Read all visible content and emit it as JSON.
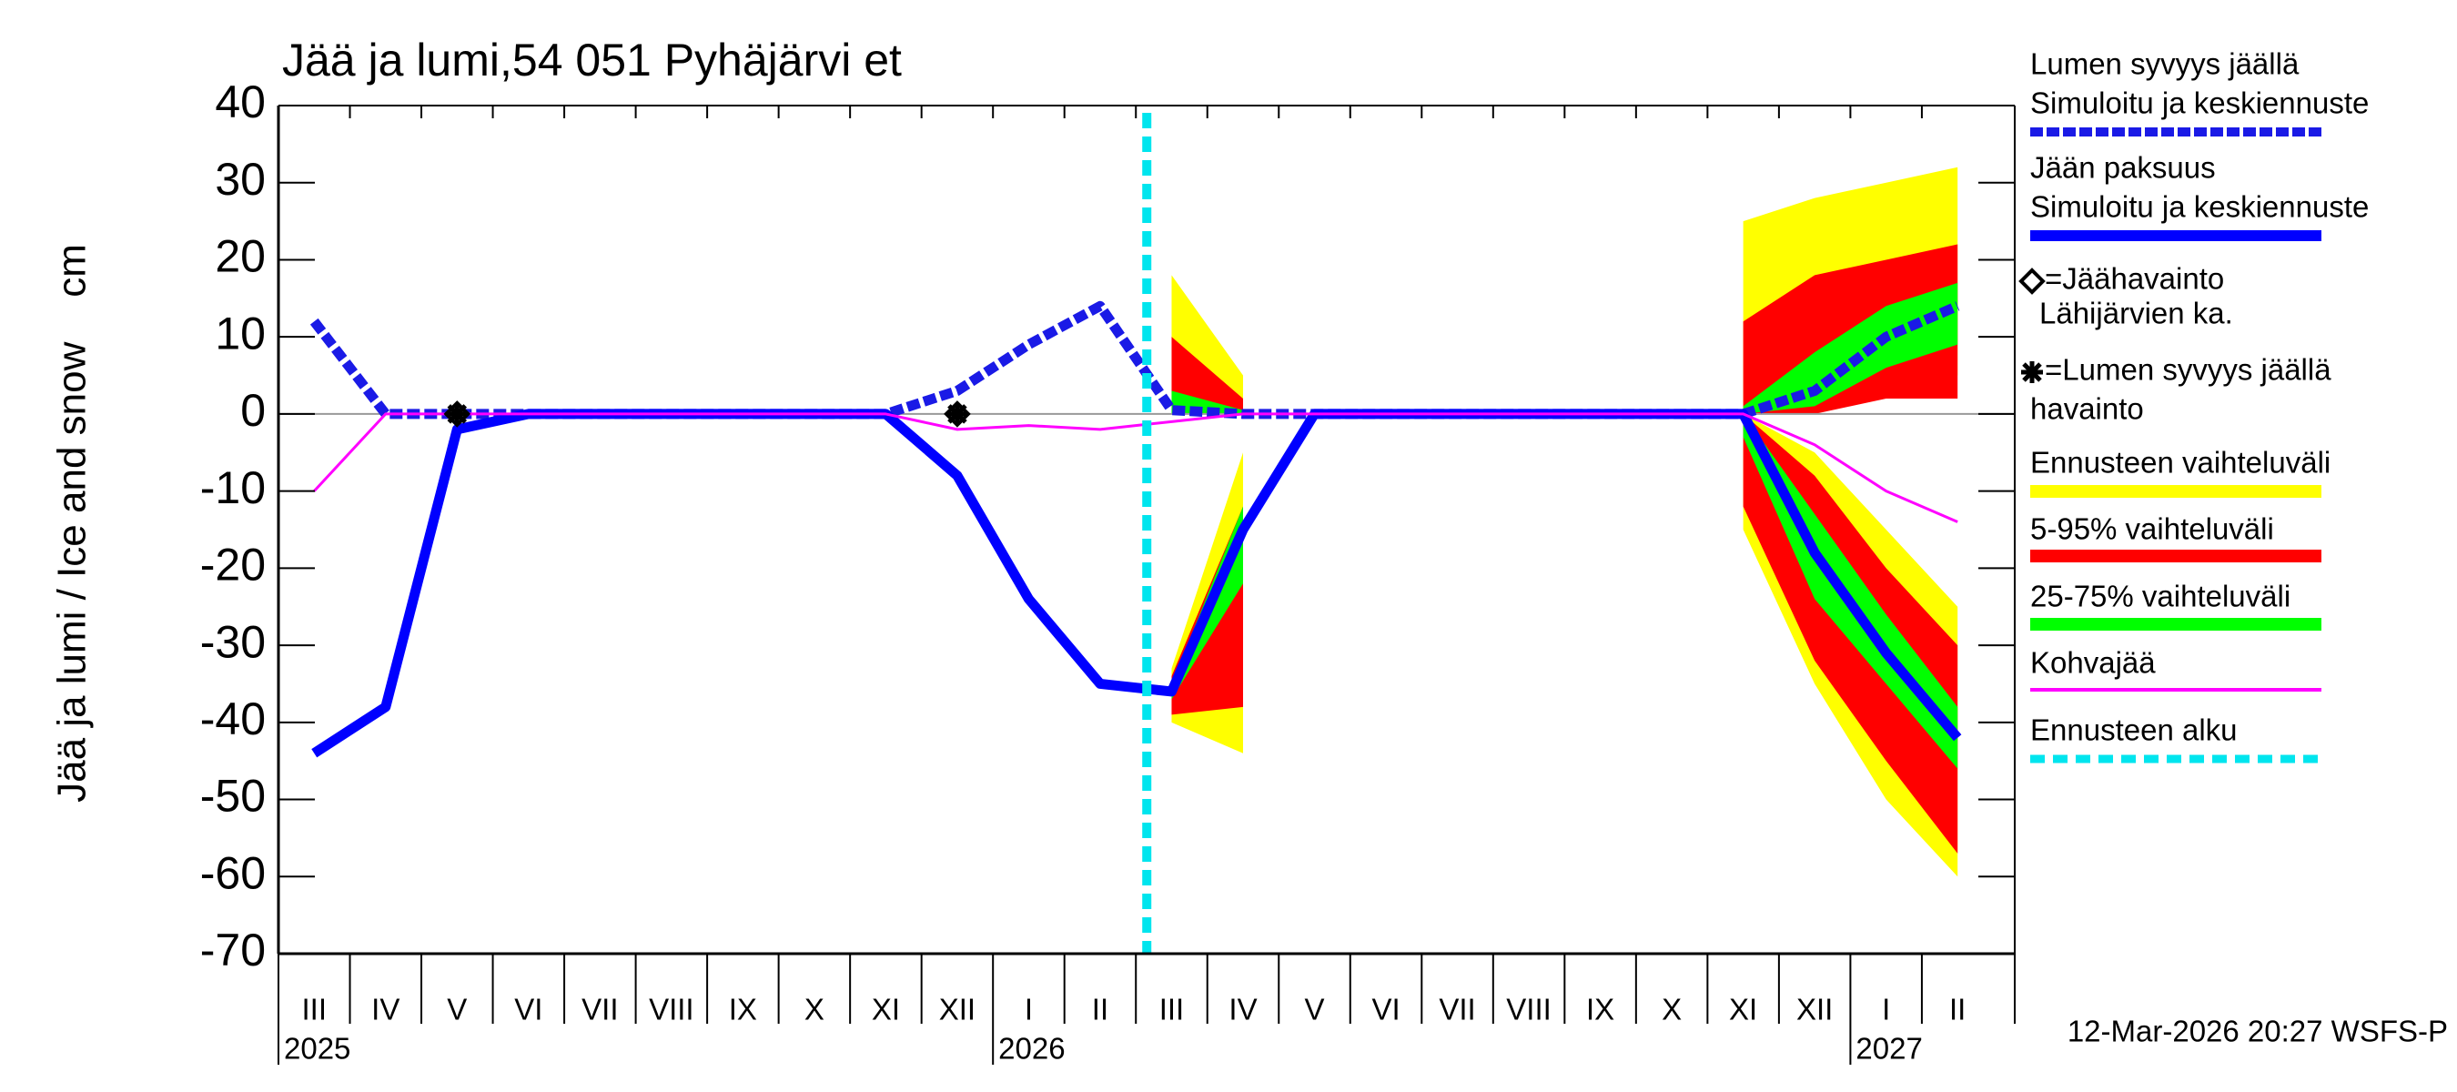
{
  "chart_data": {
    "type": "line",
    "title": "Jää ja lumi,54 051 Pyhäjärvi et",
    "y_label": "Jää ja lumi / Ice and snow    cm",
    "footer": "12-Mar-2026 20:27 WSFS-P",
    "categories": [
      "III",
      "IV",
      "V",
      "VI",
      "VII",
      "VIII",
      "IX",
      "X",
      "XI",
      "XII",
      "I",
      "II",
      "III",
      "IV",
      "V",
      "VI",
      "VII",
      "VIII",
      "IX",
      "X",
      "XI",
      "XII",
      "I",
      "II"
    ],
    "years": [
      "2025",
      null,
      null,
      null,
      null,
      null,
      null,
      null,
      null,
      null,
      "2026",
      null,
      null,
      null,
      null,
      null,
      null,
      null,
      null,
      null,
      null,
      null,
      "2027",
      null
    ],
    "ylim": [
      -70,
      40
    ],
    "yticks": [
      -70,
      -60,
      -50,
      -40,
      -30,
      -20,
      -10,
      0,
      10,
      20,
      30,
      40
    ],
    "zero_line": true,
    "series": [
      {
        "name": "Lumen syvyys jäällä",
        "note": "Simuloitu ja keskiennuste",
        "color": "#1a1ae6",
        "dash": true,
        "values": [
          12,
          0,
          0,
          0,
          0,
          0,
          0,
          0,
          0,
          3,
          9,
          14,
          0.5,
          0,
          0,
          0,
          0,
          0,
          0,
          0,
          0,
          3,
          10,
          14
        ]
      },
      {
        "name": "Jään paksuus",
        "note": "Simuloitu ja keskiennuste",
        "color": "#0000ff",
        "dash": false,
        "values": [
          -44,
          -38,
          -2,
          0,
          0,
          0,
          0,
          0,
          0,
          -8,
          -24,
          -35,
          -36,
          -15,
          0,
          0,
          0,
          0,
          0,
          0,
          0,
          -18,
          -31,
          -42
        ]
      },
      {
        "name": "Kohvajää",
        "color": "#ff00ff",
        "dash": false,
        "thin": true,
        "values": [
          -10,
          0,
          0,
          0,
          0,
          0,
          0,
          0,
          0,
          -2,
          -1.5,
          -2,
          -1,
          0,
          0,
          0,
          0,
          0,
          0,
          0,
          0,
          -4,
          -10,
          -14
        ]
      }
    ],
    "bands": [
      {
        "name": "Ennusteen vaihteluväli",
        "color": "#ffff00",
        "ice": {
          "low": [
            null,
            null,
            null,
            null,
            null,
            null,
            null,
            null,
            null,
            null,
            null,
            null,
            -40,
            -44,
            null,
            null,
            null,
            null,
            null,
            null,
            -15,
            -35,
            -50,
            -60
          ],
          "high": [
            null,
            null,
            null,
            null,
            null,
            null,
            null,
            null,
            null,
            null,
            null,
            null,
            -33,
            -5,
            null,
            null,
            null,
            null,
            null,
            null,
            0,
            -5,
            -15,
            -25
          ]
        },
        "snow": {
          "low": [
            null,
            null,
            null,
            null,
            null,
            null,
            null,
            null,
            null,
            null,
            null,
            null,
            0,
            0,
            null,
            null,
            null,
            null,
            null,
            null,
            0,
            2,
            5,
            5
          ],
          "high": [
            null,
            null,
            null,
            null,
            null,
            null,
            null,
            null,
            null,
            null,
            null,
            null,
            18,
            5,
            null,
            null,
            null,
            null,
            null,
            null,
            25,
            28,
            30,
            32
          ]
        }
      },
      {
        "name": "5-95% vaihteluväli",
        "color": "#ff0000",
        "ice": {
          "low": [
            null,
            null,
            null,
            null,
            null,
            null,
            null,
            null,
            null,
            null,
            null,
            null,
            -39,
            -38,
            null,
            null,
            null,
            null,
            null,
            null,
            -12,
            -32,
            -45,
            -57
          ],
          "high": [
            null,
            null,
            null,
            null,
            null,
            null,
            null,
            null,
            null,
            null,
            null,
            null,
            -34,
            -12,
            null,
            null,
            null,
            null,
            null,
            null,
            0,
            -8,
            -20,
            -30
          ]
        },
        "snow": {
          "low": [
            null,
            null,
            null,
            null,
            null,
            null,
            null,
            null,
            null,
            null,
            null,
            null,
            0,
            0,
            null,
            null,
            null,
            null,
            null,
            null,
            0,
            0,
            2,
            2
          ],
          "high": [
            null,
            null,
            null,
            null,
            null,
            null,
            null,
            null,
            null,
            null,
            null,
            null,
            10,
            2,
            null,
            null,
            null,
            null,
            null,
            null,
            12,
            18,
            20,
            22
          ]
        }
      },
      {
        "name": "25-75% vaihteluväli",
        "color": "#00ff00",
        "ice": {
          "low": [
            null,
            null,
            null,
            null,
            null,
            null,
            null,
            null,
            null,
            null,
            null,
            null,
            -37,
            -22,
            null,
            null,
            null,
            null,
            null,
            null,
            -3,
            -24,
            -35,
            -46
          ],
          "high": [
            null,
            null,
            null,
            null,
            null,
            null,
            null,
            null,
            null,
            null,
            null,
            null,
            -35,
            -12,
            null,
            null,
            null,
            null,
            null,
            null,
            0,
            -13,
            -26,
            -38
          ]
        },
        "snow": {
          "low": [
            null,
            null,
            null,
            null,
            null,
            null,
            null,
            null,
            null,
            null,
            null,
            null,
            0,
            0,
            null,
            null,
            null,
            null,
            null,
            null,
            0,
            1,
            6,
            9
          ],
          "high": [
            null,
            null,
            null,
            null,
            null,
            null,
            null,
            null,
            null,
            null,
            null,
            null,
            3,
            0.5,
            null,
            null,
            null,
            null,
            null,
            null,
            1,
            8,
            14,
            17
          ]
        }
      }
    ],
    "observations": [
      {
        "name": "=Jäähavainto",
        "note": "Lähijärvien ka.",
        "marker": "diamond",
        "values": [
          null,
          null,
          0,
          null,
          null,
          null,
          null,
          null,
          null,
          0,
          null,
          null,
          null,
          null,
          null,
          null,
          null,
          null,
          null,
          null,
          null,
          null,
          null,
          null
        ]
      },
      {
        "name": "=Lumen syvyys jäällä",
        "note": "havainto",
        "marker": "star",
        "values": [
          null,
          null,
          0,
          null,
          null,
          null,
          null,
          null,
          null,
          0,
          null,
          null,
          null,
          null,
          null,
          null,
          null,
          null,
          null,
          null,
          null,
          null,
          null,
          null
        ]
      }
    ],
    "forecast_start": {
      "name": "Ennusteen alku",
      "color": "#00e5ee"
    }
  }
}
